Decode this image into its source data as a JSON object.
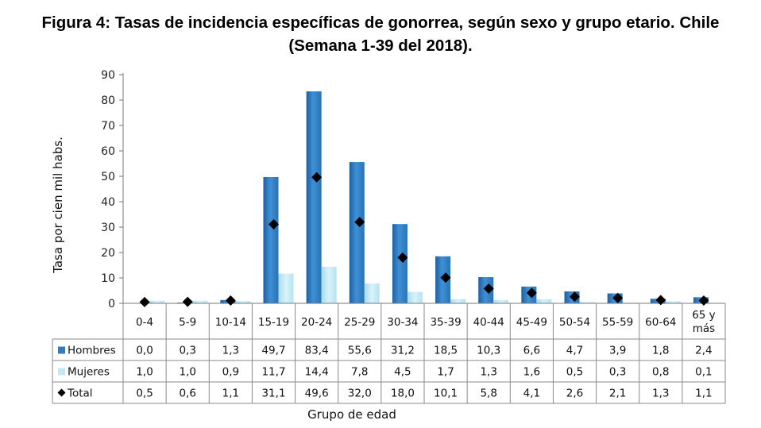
{
  "title": {
    "line1": "Figura 4: Tasas de incidencia específicas de gonorrea, según sexo y grupo etario. Chile",
    "line2": "(Semana 1-39 del 2018)."
  },
  "chart_data": {
    "type": "bar",
    "xlabel": "Grupo de edad",
    "ylabel": "Tasa por cien mil habs.",
    "ylim": [
      0,
      90
    ],
    "yticks": [
      0,
      10,
      20,
      30,
      40,
      50,
      60,
      70,
      80,
      90
    ],
    "categories": [
      "0-4",
      "5-9",
      "10-14",
      "15-19",
      "20-24",
      "25-29",
      "30-34",
      "35-39",
      "40-44",
      "45-49",
      "50-54",
      "55-59",
      "60-64",
      "65 y más"
    ],
    "category_lines": [
      [
        "0-4"
      ],
      [
        "5-9"
      ],
      [
        "10-14"
      ],
      [
        "15-19"
      ],
      [
        "20-24"
      ],
      [
        "25-29"
      ],
      [
        "30-34"
      ],
      [
        "35-39"
      ],
      [
        "40-44"
      ],
      [
        "45-49"
      ],
      [
        "50-54"
      ],
      [
        "55-59"
      ],
      [
        "60-64"
      ],
      [
        "65 y",
        "más"
      ]
    ],
    "series": [
      {
        "name": "Hombres",
        "kind": "bar",
        "color": "#2f7dc4",
        "values": [
          0.0,
          0.3,
          1.3,
          49.7,
          83.4,
          55.6,
          31.2,
          18.5,
          10.3,
          6.6,
          4.7,
          3.9,
          1.8,
          2.4
        ],
        "labels": [
          "0,0",
          "0,3",
          "1,3",
          "49,7",
          "83,4",
          "55,6",
          "31,2",
          "18,5",
          "10,3",
          "6,6",
          "4,7",
          "3,9",
          "1,8",
          "2,4"
        ]
      },
      {
        "name": "Mujeres",
        "kind": "bar",
        "color": "#bfe8f4",
        "values": [
          1.0,
          1.0,
          0.9,
          11.7,
          14.4,
          7.8,
          4.5,
          1.7,
          1.3,
          1.6,
          0.5,
          0.3,
          0.8,
          0.1
        ],
        "labels": [
          "1,0",
          "1,0",
          "0,9",
          "11,7",
          "14,4",
          "7,8",
          "4,5",
          "1,7",
          "1,3",
          "1,6",
          "0,5",
          "0,3",
          "0,8",
          "0,1"
        ]
      },
      {
        "name": "Total",
        "kind": "marker",
        "color": "#000000",
        "values": [
          0.5,
          0.6,
          1.1,
          31.1,
          49.6,
          32.0,
          18.0,
          10.1,
          5.8,
          4.1,
          2.6,
          2.1,
          1.3,
          1.1
        ],
        "labels": [
          "0,5",
          "0,6",
          "1,1",
          "31,1",
          "49,6",
          "32,0",
          "18,0",
          "10,1",
          "5,8",
          "4,1",
          "2,6",
          "2,1",
          "1,3",
          "1,1"
        ]
      }
    ],
    "legend": "data-table-rows",
    "grid": false
  }
}
